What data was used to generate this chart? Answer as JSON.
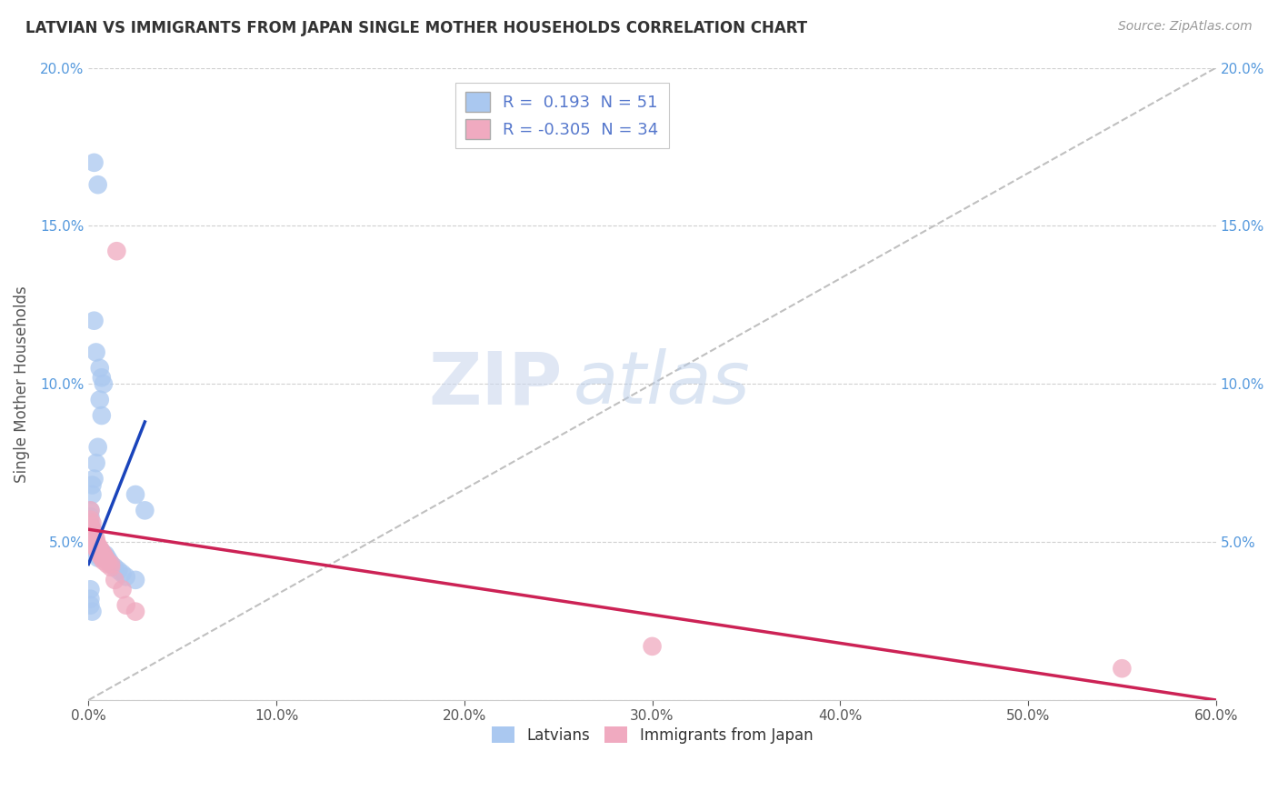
{
  "title": "LATVIAN VS IMMIGRANTS FROM JAPAN SINGLE MOTHER HOUSEHOLDS CORRELATION CHART",
  "source": "Source: ZipAtlas.com",
  "ylabel": "Single Mother Households",
  "xlim": [
    0,
    0.6
  ],
  "ylim": [
    0,
    0.2
  ],
  "latvian_R": 0.193,
  "latvian_N": 51,
  "japan_R": -0.305,
  "japan_N": 34,
  "latvian_color": "#aac8f0",
  "japan_color": "#f0aac0",
  "latvian_line_color": "#1a44bb",
  "japan_line_color": "#cc2255",
  "gray_line_color": "#c0c0c0",
  "background_color": "#ffffff",
  "grid_color": "#d0d0d0",
  "watermark_zip": "ZIP",
  "watermark_atlas": "atlas",
  "latvian_x": [
    0.003,
    0.005,
    0.003,
    0.004,
    0.006,
    0.007,
    0.008,
    0.006,
    0.007,
    0.005,
    0.004,
    0.003,
    0.002,
    0.002,
    0.001,
    0.001,
    0.001,
    0.001,
    0.002,
    0.002,
    0.003,
    0.003,
    0.004,
    0.005,
    0.006,
    0.007,
    0.008,
    0.009,
    0.01,
    0.011,
    0.012,
    0.014,
    0.016,
    0.018,
    0.02,
    0.025,
    0.001,
    0.001,
    0.002,
    0.002,
    0.003,
    0.003,
    0.004,
    0.004,
    0.005,
    0.001,
    0.001,
    0.001,
    0.002,
    0.025,
    0.03
  ],
  "latvian_y": [
    0.17,
    0.163,
    0.12,
    0.11,
    0.105,
    0.102,
    0.1,
    0.095,
    0.09,
    0.08,
    0.075,
    0.07,
    0.068,
    0.065,
    0.06,
    0.058,
    0.056,
    0.055,
    0.054,
    0.052,
    0.05,
    0.05,
    0.049,
    0.048,
    0.047,
    0.047,
    0.046,
    0.046,
    0.045,
    0.044,
    0.043,
    0.042,
    0.041,
    0.04,
    0.039,
    0.038,
    0.053,
    0.052,
    0.051,
    0.05,
    0.049,
    0.048,
    0.047,
    0.046,
    0.045,
    0.035,
    0.032,
    0.03,
    0.028,
    0.065,
    0.06
  ],
  "japan_x": [
    0.001,
    0.001,
    0.002,
    0.002,
    0.003,
    0.003,
    0.004,
    0.004,
    0.005,
    0.006,
    0.007,
    0.008,
    0.009,
    0.01,
    0.012,
    0.015,
    0.001,
    0.001,
    0.002,
    0.002,
    0.003,
    0.004,
    0.005,
    0.006,
    0.007,
    0.008,
    0.01,
    0.012,
    0.014,
    0.018,
    0.02,
    0.025,
    0.3,
    0.55
  ],
  "japan_y": [
    0.06,
    0.057,
    0.056,
    0.054,
    0.053,
    0.052,
    0.051,
    0.05,
    0.049,
    0.048,
    0.047,
    0.046,
    0.045,
    0.044,
    0.043,
    0.142,
    0.055,
    0.053,
    0.052,
    0.05,
    0.049,
    0.048,
    0.047,
    0.046,
    0.045,
    0.044,
    0.043,
    0.042,
    0.038,
    0.035,
    0.03,
    0.028,
    0.017,
    0.01
  ],
  "lat_trend_x": [
    0.0,
    0.03
  ],
  "lat_trend_y": [
    0.043,
    0.088
  ],
  "jap_trend_x": [
    0.0,
    0.6
  ],
  "jap_trend_y": [
    0.054,
    0.0
  ],
  "gray_trend_x": [
    0.0,
    0.6
  ],
  "gray_trend_y": [
    0.0,
    0.2
  ]
}
